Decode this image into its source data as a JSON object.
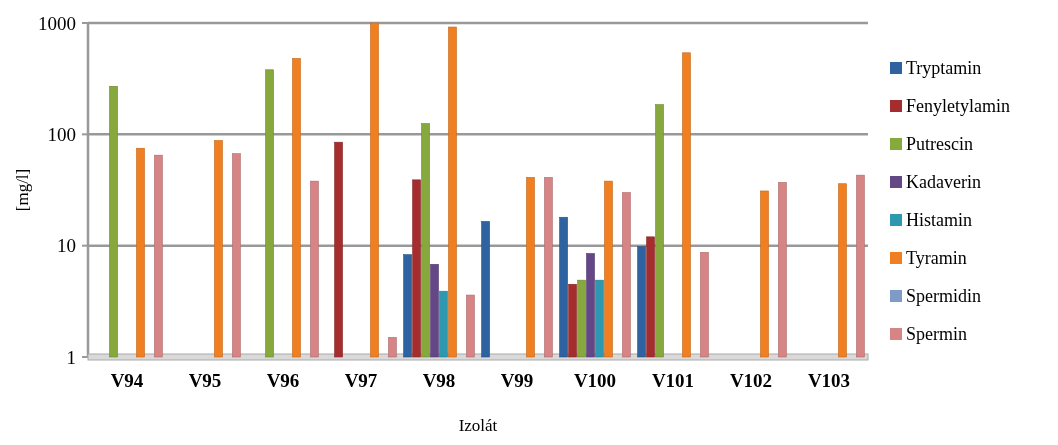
{
  "chart_data": {
    "type": "bar",
    "xlabel": "Izolát",
    "ylabel": "[mg/l]",
    "categories": [
      "V94",
      "V95",
      "V96",
      "V97",
      "V98",
      "V99",
      "V100",
      "V101",
      "V102",
      "V103"
    ],
    "log": "y",
    "ylim": [
      1,
      1000
    ],
    "yticks": [
      1,
      10,
      100,
      1000
    ],
    "grid": "y",
    "legend": "right",
    "series": [
      {
        "name": "Tryptamin",
        "color": "#2e62a0",
        "values": [
          null,
          null,
          null,
          null,
          8.3,
          16.5,
          18,
          9.8,
          null,
          null
        ]
      },
      {
        "name": "Fenyletylamin",
        "color": "#a52d2e",
        "values": [
          null,
          null,
          null,
          85,
          39,
          null,
          4.5,
          12,
          null,
          null
        ]
      },
      {
        "name": "Putrescin",
        "color": "#86a83c",
        "values": [
          270,
          null,
          380,
          null,
          125,
          null,
          4.9,
          185,
          null,
          null
        ]
      },
      {
        "name": "Kadaverin",
        "color": "#634786",
        "values": [
          null,
          null,
          null,
          null,
          6.8,
          null,
          8.5,
          null,
          null,
          null
        ]
      },
      {
        "name": "Histamin",
        "color": "#2e98b0",
        "values": [
          null,
          null,
          null,
          null,
          3.9,
          null,
          4.9,
          null,
          null,
          null
        ]
      },
      {
        "name": "Tyramin",
        "color": "#f07f22",
        "values": [
          75,
          88,
          480,
          1000,
          920,
          41,
          38,
          540,
          31,
          36
        ]
      },
      {
        "name": "Spermidin",
        "color": "#7f9cc9",
        "values": [
          null,
          null,
          null,
          null,
          null,
          null,
          null,
          null,
          null,
          null
        ]
      },
      {
        "name": "Spermin",
        "color": "#d68485",
        "values": [
          65,
          67,
          38,
          1.5,
          3.6,
          41,
          30,
          8.7,
          37,
          43
        ]
      }
    ]
  }
}
